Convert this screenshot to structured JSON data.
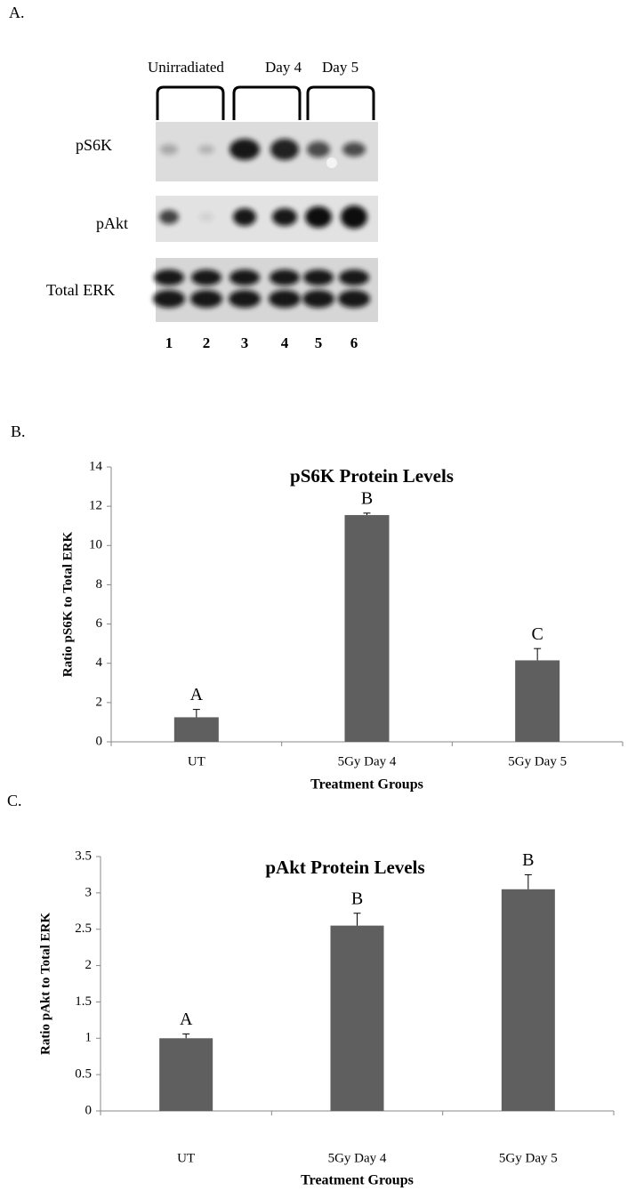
{
  "panel_a": {
    "label": "A.",
    "groups": [
      "Unirradiated",
      "Day 4",
      "Day 5"
    ],
    "rows": [
      "pS6K",
      "pAkt",
      "Total ERK"
    ],
    "lanes": [
      "1",
      "2",
      "3",
      "4",
      "5",
      "6"
    ]
  },
  "panel_labels": [
    "B.",
    "C."
  ],
  "chart_data": [
    {
      "type": "bar",
      "title": "pS6K Protein Levels",
      "xlabel": "Treatment Groups",
      "ylabel": "Ratio pS6K to Total ERK",
      "categories": [
        "UT",
        "5Gy Day 4",
        "5Gy Day 5"
      ],
      "values": [
        1.25,
        11.55,
        4.15
      ],
      "errors": [
        0.4,
        0.1,
        0.6
      ],
      "annotations": [
        "A",
        "B",
        "C"
      ],
      "color": "#5f5f5f",
      "ylim": [
        0,
        14
      ],
      "yticks": [
        0,
        2,
        4,
        6,
        8,
        10,
        12,
        14
      ]
    },
    {
      "type": "bar",
      "title": "pAkt Protein Levels",
      "xlabel": "Treatment Groups",
      "ylabel": "Ratio pAkt to Total ERK",
      "categories": [
        "UT",
        "5Gy Day 4",
        "5Gy Day 5"
      ],
      "values": [
        1.0,
        2.55,
        3.05
      ],
      "errors": [
        0.06,
        0.17,
        0.2
      ],
      "annotations": [
        "A",
        "B",
        "B"
      ],
      "color": "#5f5f5f",
      "ylim": [
        0,
        3.5
      ],
      "yticks": [
        0,
        0.5,
        1,
        1.5,
        2,
        2.5,
        3,
        3.5
      ]
    }
  ]
}
